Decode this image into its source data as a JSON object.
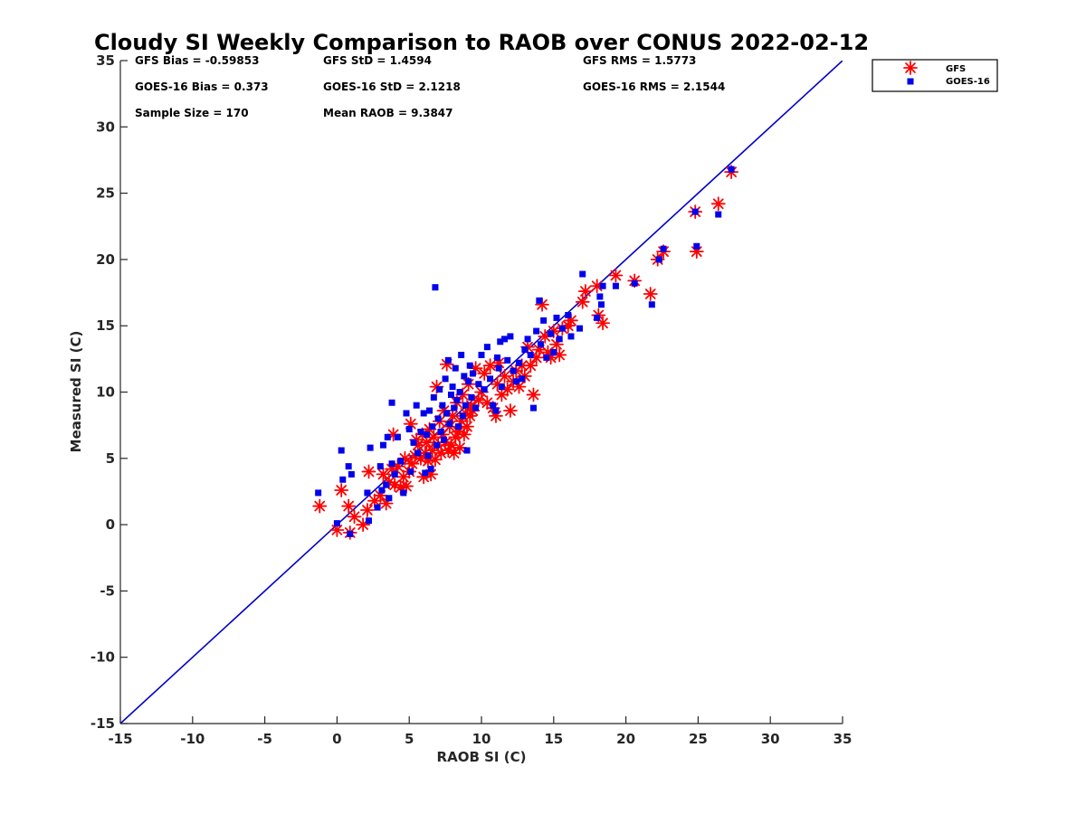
{
  "chart_data": {
    "type": "scatter",
    "title": "Cloudy SI Weekly Comparison to RAOB over CONUS 2022-02-12",
    "xlabel": "RAOB SI (C)",
    "ylabel": "Measured SI (C)",
    "xlim": [
      -15,
      35
    ],
    "ylim": [
      -15,
      35
    ],
    "xticks": [
      "-15",
      "-10",
      "-5",
      "0",
      "5",
      "10",
      "15",
      "20",
      "25",
      "30",
      "35"
    ],
    "yticks": [
      "-15",
      "-10",
      "-5",
      "0",
      "5",
      "10",
      "15",
      "20",
      "25",
      "30",
      "35"
    ],
    "grid": false,
    "legend_position": "outside-top-right",
    "reference_line": {
      "from": [
        -15,
        -15
      ],
      "to": [
        35,
        35
      ],
      "color": "#0000cc"
    },
    "stats": [
      {
        "text": "GFS Bias = -0.59853"
      },
      {
        "text": "GFS StD = 1.4594"
      },
      {
        "text": "GFS RMS = 1.5773"
      },
      {
        "text": "GOES-16 Bias = 0.373"
      },
      {
        "text": "GOES-16 StD = 2.1218"
      },
      {
        "text": "GOES-16 RMS = 2.1544"
      },
      {
        "text": "Sample Size = 170"
      },
      {
        "text": "Mean RAOB = 9.3847"
      }
    ],
    "series": [
      {
        "name": "GFS",
        "marker": "asterisk",
        "color": "#ff0000",
        "points": [
          [
            -1.2,
            1.4
          ],
          [
            0.0,
            -0.4
          ],
          [
            0.3,
            2.6
          ],
          [
            0.8,
            1.4
          ],
          [
            0.9,
            -0.6
          ],
          [
            1.2,
            0.6
          ],
          [
            1.8,
            0.0
          ],
          [
            2.1,
            1.1
          ],
          [
            2.2,
            4.0
          ],
          [
            2.6,
            1.8
          ],
          [
            3.0,
            2.2
          ],
          [
            3.2,
            3.8
          ],
          [
            3.4,
            1.6
          ],
          [
            3.6,
            3.2
          ],
          [
            3.8,
            4.2
          ],
          [
            3.9,
            6.8
          ],
          [
            4.0,
            3.0
          ],
          [
            4.2,
            4.4
          ],
          [
            4.4,
            2.8
          ],
          [
            4.6,
            3.6
          ],
          [
            4.7,
            5.0
          ],
          [
            4.8,
            2.9
          ],
          [
            5.0,
            4.0
          ],
          [
            5.1,
            7.6
          ],
          [
            5.2,
            4.6
          ],
          [
            5.4,
            5.2
          ],
          [
            5.5,
            6.4
          ],
          [
            5.6,
            6.0
          ],
          [
            5.8,
            5.0
          ],
          [
            5.9,
            6.8
          ],
          [
            6.0,
            3.6
          ],
          [
            6.1,
            5.4
          ],
          [
            6.2,
            6.2
          ],
          [
            6.3,
            4.8
          ],
          [
            6.4,
            7.2
          ],
          [
            6.5,
            3.8
          ],
          [
            6.6,
            5.6
          ],
          [
            6.7,
            6.6
          ],
          [
            6.8,
            4.9
          ],
          [
            6.9,
            10.4
          ],
          [
            7.0,
            6.0
          ],
          [
            7.1,
            7.8
          ],
          [
            7.2,
            5.4
          ],
          [
            7.3,
            6.8
          ],
          [
            7.4,
            8.6
          ],
          [
            7.5,
            6.2
          ],
          [
            7.6,
            12.1
          ],
          [
            7.7,
            5.6
          ],
          [
            7.8,
            7.4
          ],
          [
            7.9,
            6.0
          ],
          [
            8.0,
            8.2
          ],
          [
            8.1,
            5.4
          ],
          [
            8.2,
            6.6
          ],
          [
            8.3,
            9.2
          ],
          [
            8.4,
            7.0
          ],
          [
            8.5,
            5.8
          ],
          [
            8.6,
            7.8
          ],
          [
            8.7,
            9.8
          ],
          [
            8.8,
            6.8
          ],
          [
            8.9,
            8.4
          ],
          [
            9.0,
            7.4
          ],
          [
            9.1,
            10.6
          ],
          [
            9.2,
            8.2
          ],
          [
            9.3,
            9.0
          ],
          [
            9.4,
            8.6
          ],
          [
            9.6,
            11.8
          ],
          [
            9.8,
            9.4
          ],
          [
            10.0,
            10.0
          ],
          [
            10.2,
            11.4
          ],
          [
            10.4,
            9.2
          ],
          [
            10.6,
            12.0
          ],
          [
            10.8,
            8.8
          ],
          [
            11.0,
            8.2
          ],
          [
            11.1,
            10.6
          ],
          [
            11.2,
            12.2
          ],
          [
            11.4,
            9.8
          ],
          [
            11.6,
            11.2
          ],
          [
            11.8,
            10.2
          ],
          [
            12.0,
            8.6
          ],
          [
            12.2,
            10.8
          ],
          [
            12.4,
            11.6
          ],
          [
            12.6,
            10.4
          ],
          [
            12.8,
            12.0
          ],
          [
            13.0,
            11.2
          ],
          [
            13.2,
            13.4
          ],
          [
            13.4,
            12.0
          ],
          [
            13.6,
            9.8
          ],
          [
            13.8,
            12.6
          ],
          [
            14.0,
            13.2
          ],
          [
            14.2,
            16.6
          ],
          [
            14.4,
            14.2
          ],
          [
            14.6,
            13.0
          ],
          [
            14.8,
            12.6
          ],
          [
            15.0,
            14.6
          ],
          [
            15.2,
            13.6
          ],
          [
            15.4,
            12.8
          ],
          [
            15.6,
            14.8
          ],
          [
            16.0,
            15.0
          ],
          [
            16.2,
            15.4
          ],
          [
            17.0,
            16.8
          ],
          [
            17.2,
            17.6
          ],
          [
            18.0,
            18.0
          ],
          [
            18.1,
            15.8
          ],
          [
            18.4,
            15.2
          ],
          [
            19.3,
            18.8
          ],
          [
            20.6,
            18.4
          ],
          [
            21.7,
            17.4
          ],
          [
            22.2,
            20.0
          ],
          [
            22.6,
            20.6
          ],
          [
            24.8,
            23.6
          ],
          [
            24.9,
            20.6
          ],
          [
            26.4,
            24.2
          ],
          [
            27.3,
            26.6
          ]
        ]
      },
      {
        "name": "GOES-16",
        "marker": "square",
        "color": "#0000ee",
        "points": [
          [
            -1.3,
            2.4
          ],
          [
            0.0,
            0.1
          ],
          [
            0.3,
            5.6
          ],
          [
            0.4,
            3.4
          ],
          [
            0.8,
            4.4
          ],
          [
            0.9,
            -0.7
          ],
          [
            1.0,
            3.8
          ],
          [
            2.1,
            2.4
          ],
          [
            2.2,
            0.3
          ],
          [
            2.3,
            5.8
          ],
          [
            2.8,
            1.3
          ],
          [
            3.0,
            4.4
          ],
          [
            3.1,
            2.6
          ],
          [
            3.2,
            6.0
          ],
          [
            3.4,
            3.0
          ],
          [
            3.5,
            6.6
          ],
          [
            3.6,
            2.0
          ],
          [
            3.8,
            4.6
          ],
          [
            3.8,
            9.2
          ],
          [
            4.0,
            3.8
          ],
          [
            4.2,
            6.6
          ],
          [
            4.4,
            4.8
          ],
          [
            4.6,
            2.4
          ],
          [
            4.8,
            8.4
          ],
          [
            5.0,
            7.2
          ],
          [
            5.1,
            4.0
          ],
          [
            5.3,
            6.2
          ],
          [
            5.5,
            9.0
          ],
          [
            5.6,
            5.4
          ],
          [
            5.8,
            7.0
          ],
          [
            6.0,
            8.4
          ],
          [
            6.1,
            3.9
          ],
          [
            6.2,
            6.8
          ],
          [
            6.3,
            5.2
          ],
          [
            6.4,
            8.6
          ],
          [
            6.5,
            4.2
          ],
          [
            6.6,
            7.4
          ],
          [
            6.7,
            9.6
          ],
          [
            6.8,
            17.9
          ],
          [
            6.9,
            6.0
          ],
          [
            7.0,
            8.0
          ],
          [
            7.1,
            10.2
          ],
          [
            7.2,
            7.0
          ],
          [
            7.3,
            9.0
          ],
          [
            7.4,
            6.4
          ],
          [
            7.5,
            11.0
          ],
          [
            7.6,
            8.4
          ],
          [
            7.7,
            12.4
          ],
          [
            7.8,
            7.6
          ],
          [
            7.9,
            9.8
          ],
          [
            8.0,
            10.4
          ],
          [
            8.1,
            8.8
          ],
          [
            8.2,
            11.8
          ],
          [
            8.3,
            9.4
          ],
          [
            8.4,
            7.4
          ],
          [
            8.5,
            10.0
          ],
          [
            8.6,
            12.8
          ],
          [
            8.7,
            8.2
          ],
          [
            8.8,
            11.2
          ],
          [
            8.9,
            9.0
          ],
          [
            9.0,
            5.6
          ],
          [
            9.1,
            10.8
          ],
          [
            9.2,
            12.0
          ],
          [
            9.3,
            9.6
          ],
          [
            9.4,
            11.4
          ],
          [
            9.6,
            8.8
          ],
          [
            9.8,
            10.6
          ],
          [
            10.0,
            12.8
          ],
          [
            10.2,
            10.2
          ],
          [
            10.4,
            13.4
          ],
          [
            10.6,
            11.0
          ],
          [
            10.8,
            9.0
          ],
          [
            11.0,
            8.6
          ],
          [
            11.1,
            12.6
          ],
          [
            11.2,
            11.8
          ],
          [
            11.3,
            13.8
          ],
          [
            11.4,
            10.4
          ],
          [
            11.6,
            14.0
          ],
          [
            11.8,
            12.4
          ],
          [
            12.0,
            14.2
          ],
          [
            12.2,
            11.6
          ],
          [
            12.4,
            10.8
          ],
          [
            12.6,
            12.2
          ],
          [
            12.8,
            11.0
          ],
          [
            13.0,
            13.2
          ],
          [
            13.2,
            14.0
          ],
          [
            13.4,
            12.8
          ],
          [
            13.6,
            8.8
          ],
          [
            13.8,
            14.6
          ],
          [
            14.0,
            16.9
          ],
          [
            14.1,
            13.6
          ],
          [
            14.3,
            15.4
          ],
          [
            14.5,
            12.6
          ],
          [
            14.8,
            14.4
          ],
          [
            15.0,
            13.0
          ],
          [
            15.2,
            15.6
          ],
          [
            15.4,
            14.0
          ],
          [
            15.6,
            14.8
          ],
          [
            16.0,
            15.8
          ],
          [
            16.2,
            14.2
          ],
          [
            16.8,
            14.8
          ],
          [
            17.0,
            18.9
          ],
          [
            18.0,
            15.6
          ],
          [
            18.2,
            17.2
          ],
          [
            18.3,
            16.6
          ],
          [
            18.4,
            18.0
          ],
          [
            19.3,
            18.0
          ],
          [
            20.6,
            18.2
          ],
          [
            21.8,
            16.6
          ],
          [
            22.3,
            20.0
          ],
          [
            22.6,
            20.8
          ],
          [
            24.8,
            23.6
          ],
          [
            24.9,
            21.0
          ],
          [
            26.4,
            23.4
          ],
          [
            27.3,
            26.8
          ]
        ]
      }
    ]
  }
}
